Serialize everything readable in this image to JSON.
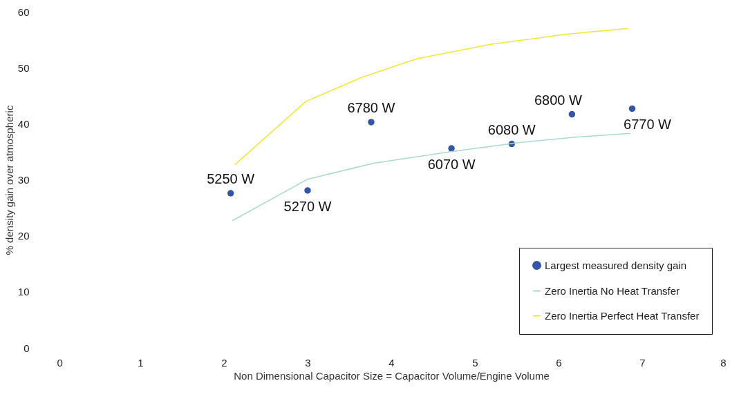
{
  "chart_data": {
    "type": "scatter",
    "xlabel": "Non Dimensional Capacitor Size = Capacitor Volume/Engine Volume",
    "ylabel": "% density gain over atmospheric",
    "xlim": [
      0,
      8
    ],
    "xticks": [
      0,
      1,
      2,
      3,
      4,
      5,
      6,
      7,
      8
    ],
    "ylim": [
      0,
      60
    ],
    "yticks": [
      0,
      10,
      20,
      30,
      40,
      50,
      60
    ],
    "legend": "bottom right",
    "annotations": [
      {
        "text": "5250 W",
        "x": 2.08,
        "y": 27.6
      },
      {
        "text": "5270 W",
        "x": 3.0,
        "y": 28.1
      },
      {
        "text": "6780 W",
        "x": 3.76,
        "y": 40.3
      },
      {
        "text": "6070 W",
        "x": 4.72,
        "y": 35.6
      },
      {
        "text": "6080 W",
        "x": 5.44,
        "y": 36.4
      },
      {
        "text": "6800 W",
        "x": 6.16,
        "y": 41.7
      },
      {
        "text": "6770 W",
        "x": 6.88,
        "y": 42.7
      }
    ],
    "series": [
      {
        "name": "Largest measured density gain",
        "marker": "circle",
        "color": "#3355aa",
        "x": [
          2.08,
          3.0,
          3.76,
          4.72,
          5.44,
          6.16,
          6.88
        ],
        "values": [
          27.6,
          28.1,
          40.3,
          35.6,
          36.4,
          41.7,
          42.7
        ]
      },
      {
        "name": "Zero Inertia No Heat Transfer",
        "type": "line",
        "color": "#a8dcc8",
        "x": [
          2.1,
          3.0,
          3.8,
          4.7,
          5.5,
          6.2,
          6.86
        ],
        "values": [
          22.7,
          30.1,
          33.0,
          35.0,
          36.6,
          37.6,
          38.3
        ]
      },
      {
        "name": "Zero Inertia Perfect Heat Transfer",
        "type": "line",
        "color": "#f2e830",
        "x": [
          2.13,
          2.98,
          3.65,
          4.3,
          5.2,
          6.1,
          6.83
        ],
        "values": [
          32.7,
          44.0,
          48.3,
          51.6,
          54.2,
          56.0,
          57.0
        ]
      }
    ]
  }
}
